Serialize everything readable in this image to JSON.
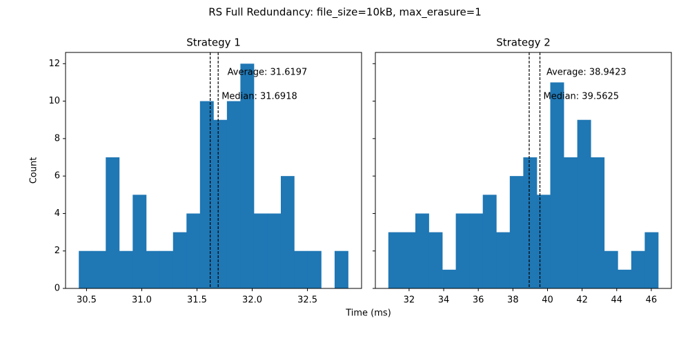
{
  "figure": {
    "title": "RS Full Redundancy: file_size=10kB, max_erasure=1",
    "xlabel": "Time (ms)",
    "ylabel": "Count"
  },
  "chart_data": [
    {
      "type": "histogram",
      "title": "Strategy 1",
      "color": "#1f77b4",
      "bins": [
        30.43,
        30.552,
        30.674,
        30.796,
        30.918,
        31.04,
        31.161,
        31.283,
        31.405,
        31.527,
        31.649,
        31.771,
        31.893,
        32.015,
        32.137,
        32.259,
        32.38,
        32.502,
        32.624,
        32.746,
        32.868
      ],
      "values": [
        2,
        2,
        7,
        2,
        5,
        2,
        2,
        3,
        4,
        10,
        9,
        10,
        12,
        4,
        4,
        6,
        2,
        2,
        0,
        2
      ],
      "xlim": [
        30.31,
        32.99
      ],
      "xticks": [
        30.5,
        {
          "value": 31,
          "label": "31.0"
        },
        31.5,
        {
          "value": 32,
          "label": "32.0"
        },
        32.5
      ],
      "ylim": [
        0,
        12.6
      ],
      "yticks": [
        0,
        2,
        4,
        6,
        8,
        10,
        12
      ],
      "annotations": [
        {
          "label": "Average: 31.6197",
          "value": 31.6197
        },
        {
          "label": "Median: 31.6918",
          "value": 31.6918
        }
      ]
    },
    {
      "type": "histogram",
      "title": "Strategy 2",
      "color": "#1f77b4",
      "bins": [
        30.8,
        31.58,
        32.36,
        33.14,
        33.92,
        34.7,
        35.48,
        36.26,
        37.04,
        37.82,
        38.6,
        39.38,
        40.16,
        40.94,
        41.72,
        42.5,
        43.28,
        44.06,
        44.84,
        45.62,
        46.4
      ],
      "values": [
        3,
        3,
        4,
        3,
        1,
        4,
        4,
        5,
        3,
        6,
        7,
        5,
        11,
        7,
        9,
        7,
        2,
        1,
        2,
        3
      ],
      "xlim": [
        30.05,
        47.16
      ],
      "xticks": [
        32,
        34,
        36,
        38,
        40,
        42,
        44,
        46
      ],
      "ylim": [
        0,
        12.6
      ],
      "yticks": [
        0,
        2,
        4,
        6,
        8,
        10,
        12
      ],
      "annotations": [
        {
          "label": "Average: 38.9423",
          "value": 38.9423
        },
        {
          "label": "Median: 39.5625",
          "value": 39.5625
        }
      ]
    }
  ]
}
